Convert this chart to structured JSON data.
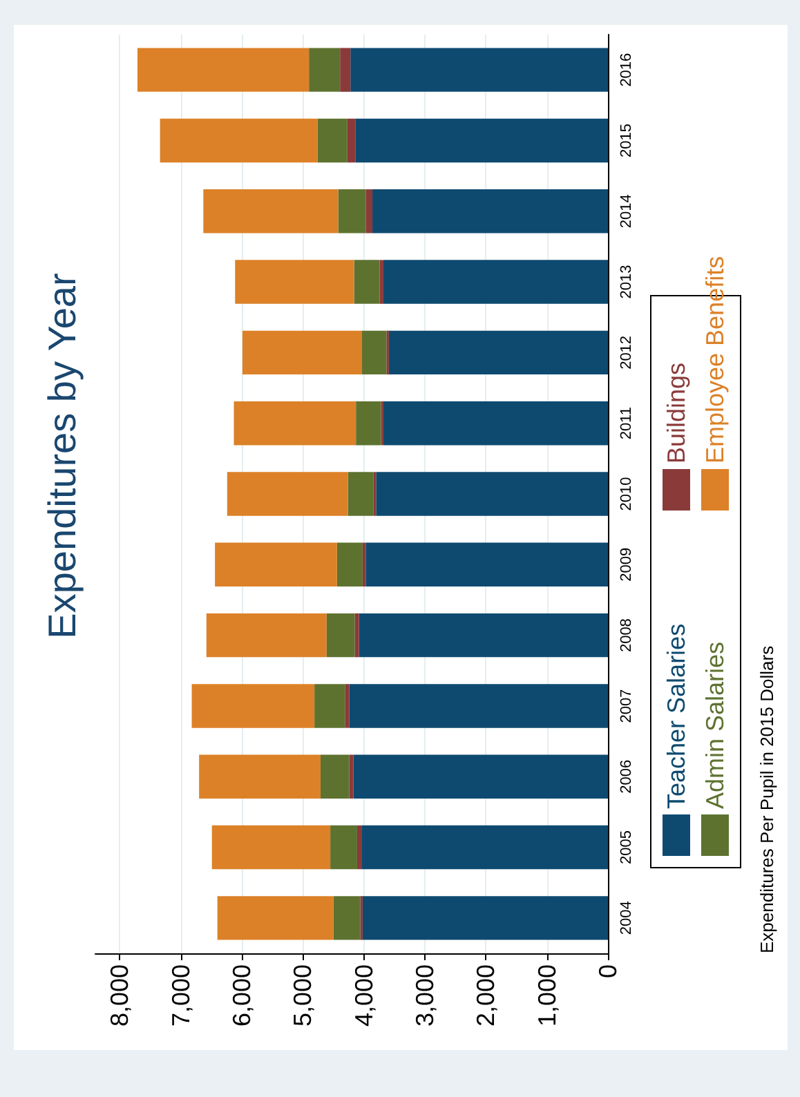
{
  "chart_data": {
    "type": "bar",
    "title": "Expenditures by Year",
    "stacked": true,
    "orientation": "horizontal",
    "categories": [
      "2016",
      "2015",
      "2014",
      "2013",
      "2012",
      "2011",
      "2010",
      "2009",
      "2008",
      "2007",
      "2006",
      "2005",
      "2004"
    ],
    "series": [
      {
        "name": "Teacher Salaries",
        "color": "#0e4a70",
        "values": [
          4220,
          4140,
          3860,
          3680,
          3590,
          3680,
          3800,
          3970,
          4080,
          4240,
          4170,
          4040,
          4020
        ]
      },
      {
        "name": "Buildings",
        "color": "#8b3a3a",
        "values": [
          170,
          130,
          110,
          60,
          40,
          40,
          40,
          50,
          70,
          70,
          70,
          70,
          40
        ]
      },
      {
        "name": "Admin Salaries",
        "color": "#5e7230",
        "values": [
          510,
          490,
          450,
          420,
          400,
          410,
          420,
          420,
          460,
          500,
          470,
          440,
          440
        ]
      },
      {
        "name": "Employee Benefits",
        "color": "#dc8128",
        "values": [
          2810,
          2580,
          2210,
          1950,
          1960,
          2000,
          1980,
          2000,
          1970,
          2010,
          1990,
          1940,
          1900
        ]
      }
    ],
    "xlim": [
      8400,
      0
    ],
    "xticks": [
      {
        "value": 8000,
        "label": "8,000"
      },
      {
        "value": 7000,
        "label": "7,000"
      },
      {
        "value": 6000,
        "label": "6,000"
      },
      {
        "value": 5000,
        "label": "5,000"
      },
      {
        "value": 4000,
        "label": "4,000"
      },
      {
        "value": 3000,
        "label": "3,000"
      },
      {
        "value": 2000,
        "label": "2,000"
      },
      {
        "value": 1000,
        "label": "1,000"
      },
      0
    ],
    "grid": "x",
    "legend": "right",
    "annotations": [
      "Expenditures Per Pupil in 2015 Dollars"
    ]
  }
}
